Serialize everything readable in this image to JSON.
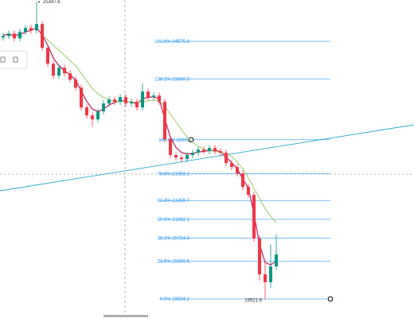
{
  "chart_data": {
    "type": "candlestick",
    "ylim": [
      19160.7,
      25384.7
    ],
    "up_color": "#089981",
    "down_color": "#f23645",
    "candles": {
      "open": [
        24650,
        24681,
        24728,
        24635,
        24759,
        24837,
        24790,
        24914,
        24448,
        24137,
        23904,
        24060,
        23950,
        23826,
        23670,
        23282,
        23126,
        23048,
        23204,
        23360,
        23437,
        23391,
        23484,
        23360,
        23391,
        23282,
        23593,
        23484,
        23515,
        23391,
        22660,
        22349,
        22302,
        22271,
        22349,
        22395,
        22457,
        22426,
        22489,
        22426,
        22395,
        22193,
        22115,
        21991,
        21727,
        21571,
        20716,
        20016,
        19861,
        20172
      ],
      "high": [
        24741,
        24788,
        24788,
        24819,
        24897,
        24897,
        25347.6,
        24974,
        24508,
        24197,
        24120,
        24120,
        24010,
        23886,
        23730,
        23342,
        23186,
        23264,
        23420,
        23497,
        23497,
        23544,
        23544,
        23451,
        23451,
        23753,
        23653,
        23575,
        23575,
        23451,
        22720,
        22409,
        22362,
        22409,
        22455,
        22517,
        22517,
        22549,
        22549,
        22486,
        22455,
        22253,
        22175,
        22051,
        21787,
        21631,
        20776,
        20276,
        20600,
        20800
      ],
      "low": [
        24590,
        24621,
        24575,
        24575,
        24699,
        24730,
        24730,
        24388,
        24077,
        23844,
        23844,
        23890,
        23766,
        23610,
        23222,
        23066,
        22900,
        22988,
        23144,
        23300,
        23331,
        23331,
        23300,
        23300,
        23222,
        23222,
        23424,
        23424,
        23331,
        22600,
        22289,
        22242,
        22211,
        22211,
        22289,
        22335,
        22366,
        22366,
        22366,
        22335,
        22133,
        22055,
        21931,
        21667,
        21511,
        20656,
        19900,
        19521.6,
        19750,
        20100
      ],
      "close": [
        24681,
        24728,
        24635,
        24759,
        24837,
        24790,
        24914,
        24448,
        24137,
        23904,
        24060,
        23950,
        23826,
        23670,
        23282,
        23126,
        23048,
        23204,
        23360,
        23437,
        23391,
        23484,
        23360,
        23391,
        23282,
        23593,
        23484,
        23515,
        23391,
        22660,
        22349,
        22302,
        22271,
        22349,
        22395,
        22457,
        22426,
        22489,
        22426,
        22395,
        22193,
        22115,
        21991,
        21727,
        21571,
        20716,
        20016,
        19861,
        20172,
        20405
      ]
    },
    "series": [
      {
        "color": "#c2185b",
        "values": [
          24700,
          24710,
          24690,
          24710,
          24760,
          24790,
          24840,
          24700,
          24500,
          24250,
          24100,
          24000,
          23920,
          23820,
          23600,
          23400,
          23250,
          23200,
          23250,
          23330,
          23380,
          23420,
          23400,
          23390,
          23350,
          23450,
          23480,
          23490,
          23450,
          23050,
          22700,
          22500,
          22400,
          22370,
          22380,
          22410,
          22420,
          22440,
          22440,
          22420,
          22310,
          22200,
          22080,
          21880,
          21700,
          21200,
          20600,
          20250,
          20200,
          20280
        ]
      },
      {
        "color": "#9ccc65",
        "values": [
          null,
          null,
          null,
          null,
          null,
          null,
          null,
          24700,
          24600,
          24500,
          24400,
          24300,
          24200,
          24100,
          23950,
          23800,
          23650,
          23550,
          23480,
          23430,
          23410,
          23400,
          23400,
          23390,
          23380,
          23400,
          23410,
          23420,
          23410,
          23300,
          23150,
          23000,
          22850,
          22700,
          22600,
          22520,
          22470,
          22440,
          22420,
          22400,
          22380,
          22320,
          22220,
          22080,
          21900,
          21700,
          21500,
          21300,
          21150,
          21030
        ]
      }
    ],
    "fib_color": "#2196f3",
    "fib_levels": [
      {
        "ratio": "161.8%",
        "value": 24575.6
      },
      {
        "ratio": "138.2%",
        "value": 23840.3
      },
      {
        "ratio": "100.0%",
        "value": 22650.0
      },
      {
        "ratio": "78.6%",
        "value": 21983.2
      },
      {
        "ratio": "61.8%",
        "value": 21459.7
      },
      {
        "ratio": "50.0%",
        "value": 21092.1
      },
      {
        "ratio": "38.2%",
        "value": 20724.4
      },
      {
        "ratio": "23.6%",
        "value": 20269.5
      },
      {
        "ratio": "0.0%",
        "value": 19534.1
      }
    ]
  }
}
